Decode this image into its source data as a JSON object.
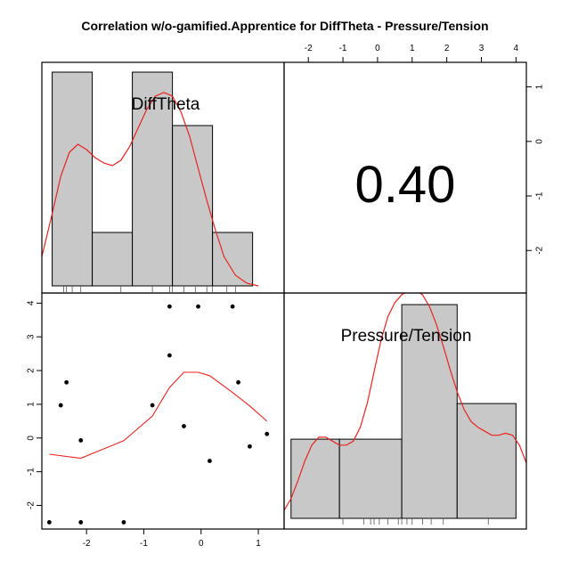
{
  "chart_data": {
    "type": "pairs",
    "title": "Correlation w/o-gamified.Apprentice for DiffTheta - Pressure/Tension",
    "variables": [
      "DiffTheta",
      "Pressure/Tension"
    ],
    "correlation": "0.40",
    "axes": {
      "DiffTheta": {
        "range": [
          -2.78,
          1.45
        ],
        "ticks": [
          -2,
          -1,
          0,
          1
        ],
        "tick_labels": [
          "-2",
          "-1",
          "0",
          "1"
        ]
      },
      "Pressure/Tension": {
        "range": [
          -2.7,
          4.3
        ],
        "ticks": [
          -2,
          -1,
          0,
          1,
          2,
          3,
          4
        ],
        "tick_labels": [
          "-2",
          "-1",
          "0",
          "1",
          "2",
          "3",
          "4"
        ]
      }
    },
    "histograms": {
      "DiffTheta": {
        "bins": [
          {
            "x0": -2.6,
            "x1": -1.9,
            "count": 4
          },
          {
            "x0": -1.9,
            "x1": -1.2,
            "count": 1
          },
          {
            "x0": -1.2,
            "x1": -0.5,
            "count": 4
          },
          {
            "x0": -0.5,
            "x1": 0.2,
            "count": 3
          },
          {
            "x0": 0.2,
            "x1": 0.9,
            "count": 1
          }
        ],
        "density": [
          [
            -2.78,
            0.55
          ],
          [
            -2.6,
            1.35
          ],
          [
            -2.45,
            2.05
          ],
          [
            -2.3,
            2.5
          ],
          [
            -2.15,
            2.65
          ],
          [
            -2.0,
            2.55
          ],
          [
            -1.85,
            2.4
          ],
          [
            -1.7,
            2.3
          ],
          [
            -1.55,
            2.25
          ],
          [
            -1.4,
            2.35
          ],
          [
            -1.25,
            2.6
          ],
          [
            -1.1,
            2.95
          ],
          [
            -0.95,
            3.3
          ],
          [
            -0.8,
            3.55
          ],
          [
            -0.65,
            3.62
          ],
          [
            -0.5,
            3.55
          ],
          [
            -0.35,
            3.25
          ],
          [
            -0.2,
            2.8
          ],
          [
            -0.05,
            2.2
          ],
          [
            0.1,
            1.6
          ],
          [
            0.25,
            1.05
          ],
          [
            0.4,
            0.55
          ],
          [
            0.6,
            0.2
          ],
          [
            0.8,
            0.05
          ],
          [
            1.0,
            0.0
          ]
        ],
        "rug": [
          -2.4,
          -2.35,
          -2.25,
          -2.1,
          -1.4,
          -0.85,
          -0.55,
          -0.5,
          -0.3,
          -0.1,
          0.1,
          0.2,
          0.45,
          0.6
        ]
      },
      "Pressure/Tension": {
        "bins": [
          {
            "x0": -2.5,
            "x1": -1.1,
            "count": 2
          },
          {
            "x0": -1.1,
            "x1": 0.7,
            "count": 2
          },
          {
            "x0": 0.7,
            "x1": 2.3,
            "count": 5.4
          },
          {
            "x0": 2.3,
            "x1": 4.0,
            "count": 2.9
          }
        ],
        "density": [
          [
            -2.7,
            0.2
          ],
          [
            -2.5,
            0.5
          ],
          [
            -2.3,
            0.95
          ],
          [
            -2.1,
            1.45
          ],
          [
            -1.9,
            1.85
          ],
          [
            -1.7,
            2.05
          ],
          [
            -1.5,
            2.05
          ],
          [
            -1.3,
            1.95
          ],
          [
            -1.1,
            1.85
          ],
          [
            -0.9,
            1.85
          ],
          [
            -0.7,
            1.95
          ],
          [
            -0.5,
            2.3
          ],
          [
            -0.3,
            2.9
          ],
          [
            -0.1,
            3.7
          ],
          [
            0.1,
            4.5
          ],
          [
            0.3,
            5.1
          ],
          [
            0.5,
            5.45
          ],
          [
            0.7,
            5.65
          ],
          [
            0.9,
            5.75
          ],
          [
            1.1,
            5.75
          ],
          [
            1.3,
            5.65
          ],
          [
            1.5,
            5.35
          ],
          [
            1.7,
            4.9
          ],
          [
            1.9,
            4.35
          ],
          [
            2.1,
            3.75
          ],
          [
            2.3,
            3.2
          ],
          [
            2.5,
            2.75
          ],
          [
            2.7,
            2.45
          ],
          [
            2.9,
            2.3
          ],
          [
            3.1,
            2.2
          ],
          [
            3.3,
            2.1
          ],
          [
            3.5,
            2.1
          ],
          [
            3.7,
            2.15
          ],
          [
            3.9,
            2.1
          ],
          [
            4.1,
            1.85
          ],
          [
            4.3,
            1.4
          ]
        ],
        "rug": [
          -1.0,
          -0.4,
          -0.2,
          -0.1,
          0.05,
          0.3,
          0.6,
          0.7,
          0.85,
          1.0,
          1.3,
          1.55,
          1.9,
          3.2
        ]
      }
    },
    "scatter": {
      "x_var": "DiffTheta",
      "y_var": "Pressure/Tension",
      "points": [
        [
          -0.55,
          3.9
        ],
        [
          -0.05,
          3.9
        ],
        [
          0.55,
          3.9
        ],
        [
          -0.55,
          2.45
        ],
        [
          -2.35,
          1.65
        ],
        [
          0.65,
          1.65
        ],
        [
          -2.45,
          0.97
        ],
        [
          -0.85,
          0.97
        ],
        [
          -0.3,
          0.35
        ],
        [
          1.15,
          0.12
        ],
        [
          -2.1,
          -0.07
        ],
        [
          0.85,
          -0.25
        ],
        [
          0.15,
          -0.68
        ],
        [
          -2.65,
          -2.5
        ],
        [
          -2.1,
          -2.5
        ],
        [
          -1.35,
          -2.5
        ]
      ],
      "smooth": [
        [
          -2.65,
          -0.48
        ],
        [
          -2.1,
          -0.6
        ],
        [
          -1.35,
          -0.08
        ],
        [
          -0.85,
          0.65
        ],
        [
          -0.55,
          1.5
        ],
        [
          -0.3,
          1.95
        ],
        [
          -0.05,
          1.95
        ],
        [
          0.15,
          1.85
        ],
        [
          0.55,
          1.35
        ],
        [
          0.85,
          0.95
        ],
        [
          1.15,
          0.5
        ]
      ]
    },
    "colors": {
      "bar_fill": "#c8c8c8",
      "smooth_line": "#e8231f",
      "points": "#000000",
      "frame": "#000000"
    }
  }
}
